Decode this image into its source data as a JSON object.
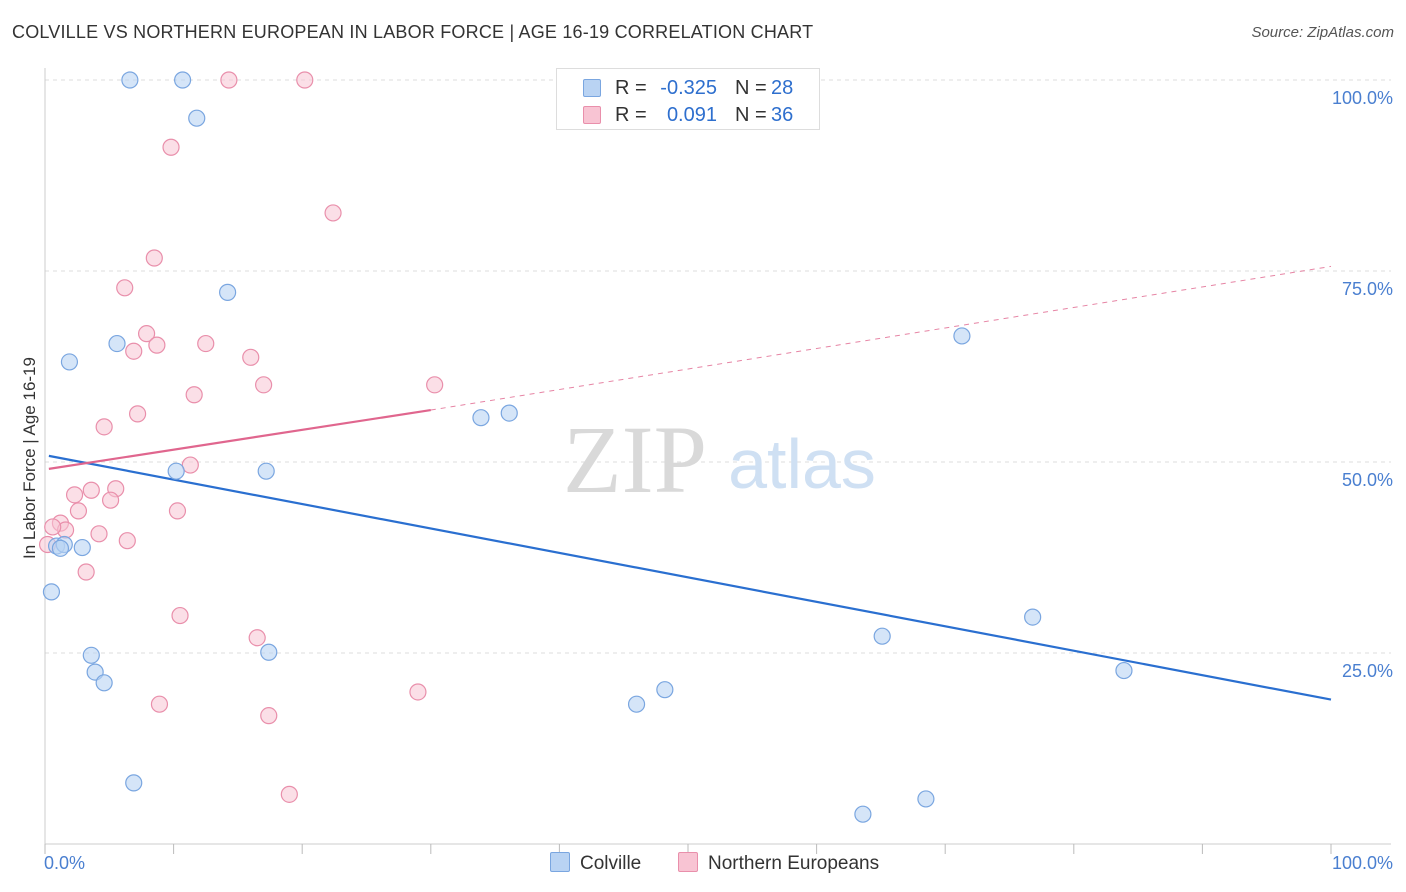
{
  "title": "COLVILLE VS NORTHERN EUROPEAN IN LABOR FORCE | AGE 16-19 CORRELATION CHART",
  "source": "Source: ZipAtlas.com",
  "watermark": {
    "zip": "ZIP",
    "atlas": "atlas"
  },
  "legend": {
    "rows": [
      {
        "r_label": "R =",
        "r_value": "-0.325",
        "n_label": "N =",
        "n_value": "28"
      },
      {
        "r_label": "R =",
        "r_value": "0.091",
        "n_label": "N =",
        "n_value": "36"
      }
    ]
  },
  "bottom_legend": {
    "colville": "Colville",
    "northern": "Northern Europeans"
  },
  "colors": {
    "colville_fill": "#b9d3f3",
    "colville_stroke": "#7aa6e0",
    "colville_line": "#2a6fd0",
    "northern_fill": "#f8c4d3",
    "northern_stroke": "#e98fab",
    "northern_line": "#e0668e",
    "axis_text": "#4a7fd0",
    "grid": "#dddddd"
  },
  "chart_data": {
    "type": "scatter",
    "ylabel": "In Labor Force | Age 16-19",
    "xlabel": "",
    "xlim": [
      0,
      100
    ],
    "ylim": [
      0,
      100
    ],
    "x_tick_labels": [
      "0.0%",
      "100.0%"
    ],
    "y_tick_labels": [
      "25.0%",
      "50.0%",
      "75.0%",
      "100.0%"
    ],
    "y_ticks": [
      25,
      50,
      75,
      100
    ],
    "series": [
      {
        "name": "Colville",
        "r": -0.325,
        "n": 28,
        "points": [
          [
            6.6,
            100
          ],
          [
            10.7,
            100
          ],
          [
            11.8,
            95
          ],
          [
            14.2,
            72.2
          ],
          [
            5.6,
            65.5
          ],
          [
            1.9,
            63.1
          ],
          [
            10.2,
            48.8
          ],
          [
            17.2,
            48.8
          ],
          [
            33.9,
            55.8
          ],
          [
            36.1,
            56.4
          ],
          [
            71.3,
            66.5
          ],
          [
            0.9,
            39
          ],
          [
            2.9,
            38.8
          ],
          [
            0.5,
            33
          ],
          [
            3.6,
            24.7
          ],
          [
            3.9,
            22.5
          ],
          [
            4.6,
            21.1
          ],
          [
            17.4,
            25.1
          ],
          [
            6.9,
            8
          ],
          [
            46,
            18.3
          ],
          [
            48.2,
            20.2
          ],
          [
            65.1,
            27.2
          ],
          [
            76.8,
            29.7
          ],
          [
            83.9,
            22.7
          ],
          [
            63.6,
            3.9
          ],
          [
            68.5,
            5.9
          ],
          [
            1.5,
            39.2
          ],
          [
            1.2,
            38.7
          ]
        ],
        "trend": {
          "x": [
            0.3,
            100
          ],
          "y": [
            50.8,
            18.9
          ]
        }
      },
      {
        "name": "Northern Europeans",
        "r": 0.091,
        "n": 36,
        "points": [
          [
            14.3,
            100
          ],
          [
            20.2,
            100
          ],
          [
            9.8,
            91.2
          ],
          [
            22.4,
            82.6
          ],
          [
            8.5,
            76.7
          ],
          [
            6.2,
            72.8
          ],
          [
            7.9,
            66.8
          ],
          [
            8.7,
            65.3
          ],
          [
            6.9,
            64.5
          ],
          [
            12.5,
            65.5
          ],
          [
            16,
            63.7
          ],
          [
            17,
            60.1
          ],
          [
            11.6,
            58.8
          ],
          [
            7.2,
            56.3
          ],
          [
            4.6,
            54.6
          ],
          [
            30.3,
            60.1
          ],
          [
            11.3,
            49.6
          ],
          [
            2.3,
            45.7
          ],
          [
            3.6,
            46.3
          ],
          [
            5.5,
            46.5
          ],
          [
            5.1,
            45
          ],
          [
            2.6,
            43.6
          ],
          [
            10.3,
            43.6
          ],
          [
            1.2,
            42
          ],
          [
            1.6,
            41.1
          ],
          [
            4.2,
            40.6
          ],
          [
            6.4,
            39.7
          ],
          [
            3.2,
            35.6
          ],
          [
            10.5,
            29.9
          ],
          [
            16.5,
            27
          ],
          [
            29,
            19.9
          ],
          [
            8.9,
            18.3
          ],
          [
            17.4,
            16.8
          ],
          [
            19,
            6.5
          ],
          [
            0.6,
            41.5
          ],
          [
            0.2,
            39.2
          ]
        ],
        "trend_solid": {
          "x": [
            0.3,
            30
          ],
          "y": [
            49.1,
            56.8
          ]
        },
        "trend_dashed": {
          "x": [
            30,
            100
          ],
          "y": [
            56.8,
            75.6
          ]
        }
      }
    ]
  }
}
